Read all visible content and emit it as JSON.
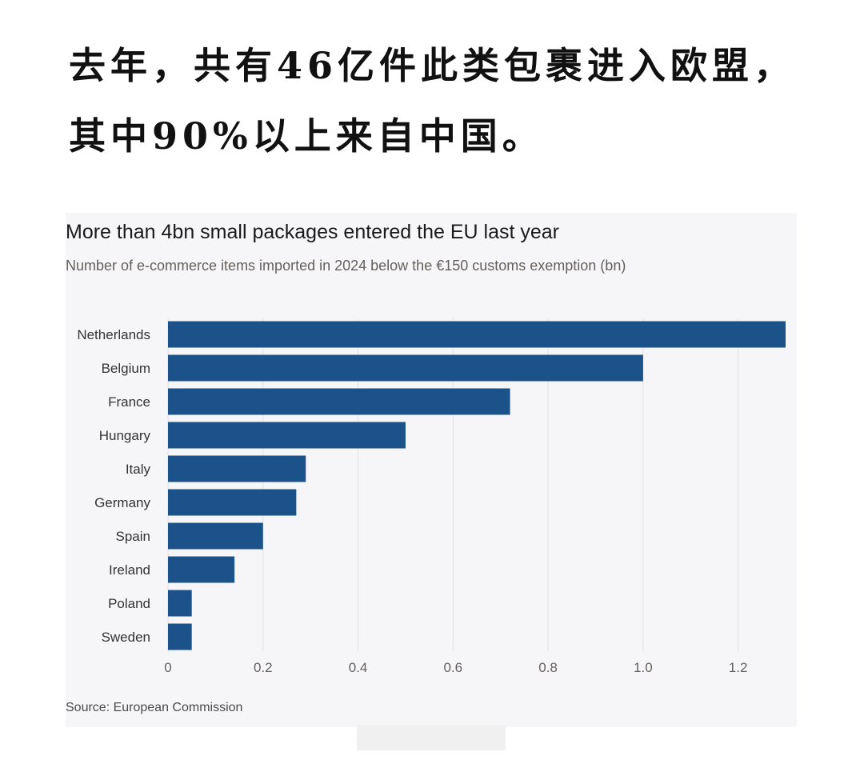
{
  "headline": "去年，共有46亿件此类包裹进入欧盟，其中90%以上来自中国。",
  "chart_data": {
    "type": "bar",
    "orientation": "horizontal",
    "title": "More than 4bn small packages entered the EU last year",
    "subtitle": "Number of e-commerce items imported in 2024 below the €150 customs exemption (bn)",
    "source": "Source: European Commission",
    "categories": [
      "Netherlands",
      "Belgium",
      "France",
      "Hungary",
      "Italy",
      "Germany",
      "Spain",
      "Ireland",
      "Poland",
      "Sweden"
    ],
    "values": [
      1.3,
      1.0,
      0.72,
      0.5,
      0.29,
      0.27,
      0.2,
      0.14,
      0.05,
      0.05
    ],
    "xticks": [
      "0",
      "0.2",
      "0.4",
      "0.6",
      "0.8",
      "1.0",
      "1.2"
    ],
    "xlim": [
      0,
      1.3
    ],
    "grid": true,
    "legend": false,
    "colors": {
      "bar": "#1b528a",
      "grid": "#e2e2e4",
      "tick_label": "#66605c",
      "category_label": "#333333"
    }
  }
}
